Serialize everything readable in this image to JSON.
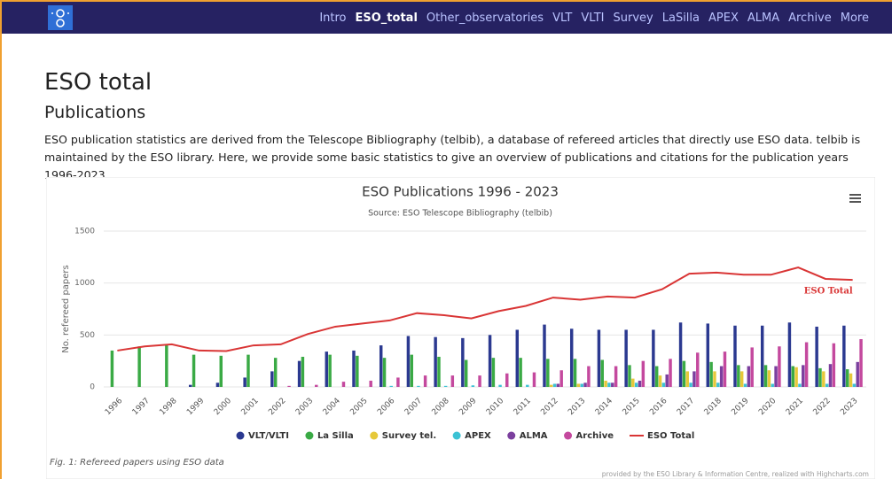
{
  "nav": {
    "items": [
      "Intro",
      "ESO_total",
      "Other_observatories",
      "VLT",
      "VLTI",
      "Survey",
      "LaSilla",
      "APEX",
      "ALMA",
      "Archive",
      "More"
    ],
    "active": 1
  },
  "page": {
    "title": "ESO total",
    "subtitle": "Publications",
    "text": "ESO publication statistics are derived from the Telescope Bibliography (telbib), a database of refereed articles that directly use ESO data. telbib is maintained by the ESO library. Here, we provide some basic statistics to give an overview of publications and citations for the publication years 1996-2023."
  },
  "chart_data": {
    "type": "bar",
    "title": "ESO Publications 1996 - 2023",
    "subtitle": "Source: ESO Telescope Bibliography (telbib)",
    "y_label": "No. refereed papers",
    "categories": [
      "1996",
      "1997",
      "1998",
      "1999",
      "2000",
      "2001",
      "2002",
      "2003",
      "2004",
      "2005",
      "2006",
      "2007",
      "2008",
      "2009",
      "2010",
      "2011",
      "2012",
      "2013",
      "2014",
      "2015",
      "2016",
      "2017",
      "2018",
      "2019",
      "2020",
      "2021",
      "2022",
      "2023"
    ],
    "series": [
      {
        "name": "VLT/VLTI",
        "color": "#2b3990",
        "values": [
          0,
          0,
          0,
          20,
          40,
          90,
          150,
          250,
          340,
          350,
          400,
          490,
          480,
          470,
          500,
          550,
          600,
          560,
          550,
          550,
          550,
          620,
          610,
          590,
          590,
          620,
          580,
          590
        ]
      },
      {
        "name": "La Silla",
        "color": "#3aaa45",
        "values": [
          350,
          390,
          400,
          310,
          300,
          310,
          280,
          290,
          310,
          300,
          280,
          310,
          290,
          260,
          280,
          280,
          270,
          270,
          260,
          210,
          200,
          250,
          240,
          210,
          210,
          200,
          180,
          170
        ]
      },
      {
        "name": "Survey tel.",
        "color": "#e6c83a",
        "values": [
          0,
          0,
          0,
          0,
          0,
          0,
          0,
          0,
          0,
          0,
          0,
          0,
          0,
          0,
          0,
          0,
          20,
          30,
          60,
          80,
          110,
          150,
          150,
          150,
          160,
          190,
          150,
          130
        ]
      },
      {
        "name": "APEX",
        "color": "#3cc2d4",
        "values": [
          0,
          0,
          0,
          0,
          0,
          0,
          0,
          0,
          0,
          0,
          10,
          10,
          10,
          15,
          20,
          20,
          30,
          30,
          40,
          40,
          40,
          40,
          40,
          30,
          30,
          30,
          30,
          30
        ]
      },
      {
        "name": "ALMA",
        "color": "#7b3f9e",
        "values": [
          0,
          0,
          0,
          0,
          0,
          0,
          0,
          0,
          0,
          0,
          0,
          0,
          0,
          0,
          0,
          0,
          30,
          40,
          40,
          60,
          120,
          150,
          200,
          200,
          200,
          210,
          220,
          240
        ]
      },
      {
        "name": "Archive",
        "color": "#c4499e",
        "values": [
          0,
          0,
          0,
          0,
          0,
          0,
          10,
          20,
          50,
          60,
          90,
          110,
          110,
          110,
          130,
          140,
          160,
          200,
          200,
          250,
          270,
          330,
          340,
          380,
          390,
          430,
          420,
          460
        ]
      },
      {
        "name": "ESO Total",
        "type": "line",
        "color": "#d93535",
        "values": [
          350,
          390,
          410,
          350,
          345,
          400,
          410,
          510,
          580,
          610,
          640,
          710,
          690,
          660,
          730,
          780,
          860,
          840,
          870,
          860,
          940,
          1090,
          1100,
          1080,
          1080,
          1150,
          1040,
          1030
        ]
      }
    ],
    "ylim": [
      0,
      1500
    ],
    "yticks": [
      0,
      500,
      1000,
      1500
    ],
    "grid": true,
    "caption": "Fig. 1: Refereed papers using ESO data",
    "credits": "provided by the ESO Library & Information Centre, realized with Highcharts.com"
  }
}
